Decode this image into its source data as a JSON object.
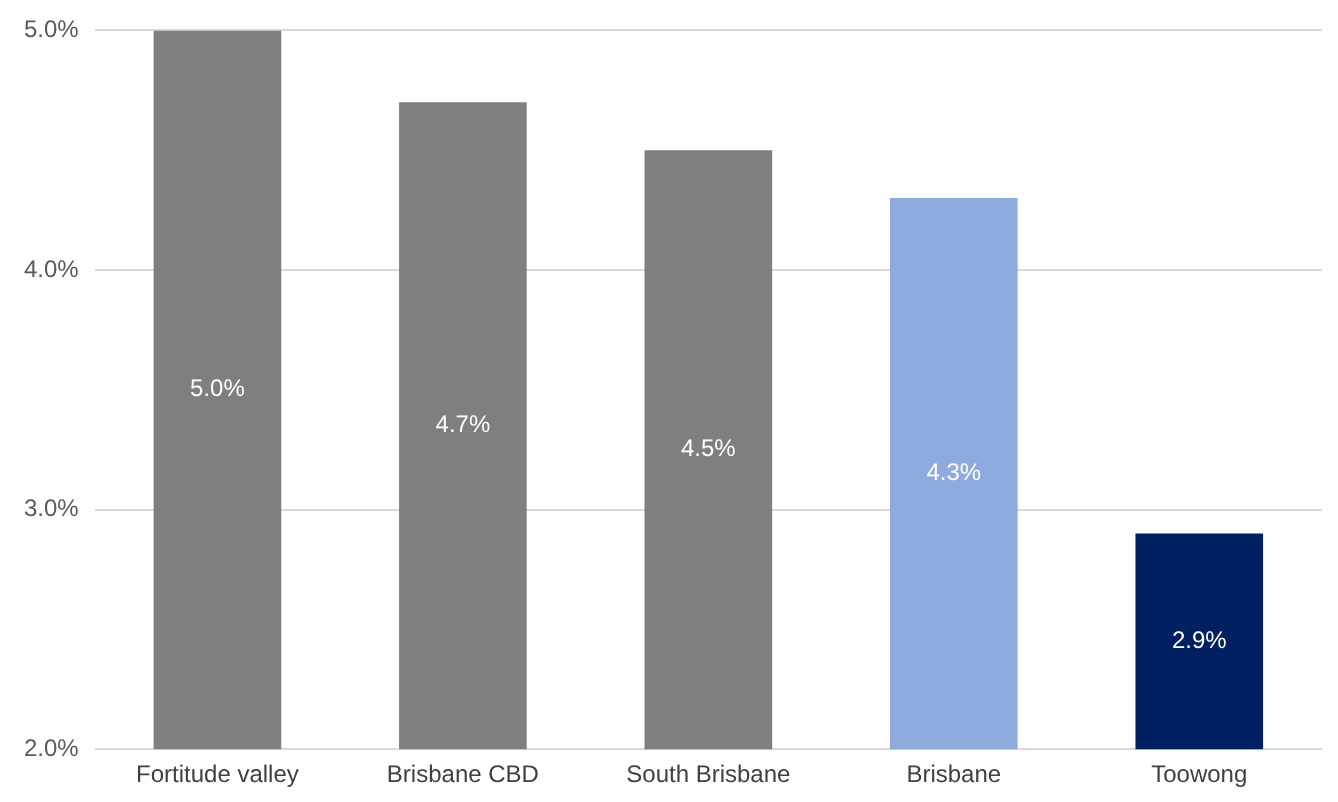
{
  "chart_data": {
    "type": "bar",
    "categories": [
      "Fortitude valley",
      "Brisbane CBD",
      "South Brisbane",
      "Brisbane",
      "Toowong"
    ],
    "values": [
      5.0,
      4.7,
      4.5,
      4.3,
      2.9
    ],
    "colors": [
      "#7f7f7f",
      "#7f7f7f",
      "#7f7f7f",
      "#8faadc",
      "#002060"
    ],
    "value_labels": [
      "5.0%",
      "4.7%",
      "4.5%",
      "4.3%",
      "2.9%"
    ],
    "ylim": [
      2,
      5
    ],
    "yticks": [
      {
        "value": 2,
        "label": "2.0%"
      },
      {
        "value": 3,
        "label": "3.0%"
      },
      {
        "value": 4,
        "label": "4.0%"
      },
      {
        "value": 5,
        "label": "5.0%"
      }
    ],
    "grid": "y",
    "legend": false
  }
}
